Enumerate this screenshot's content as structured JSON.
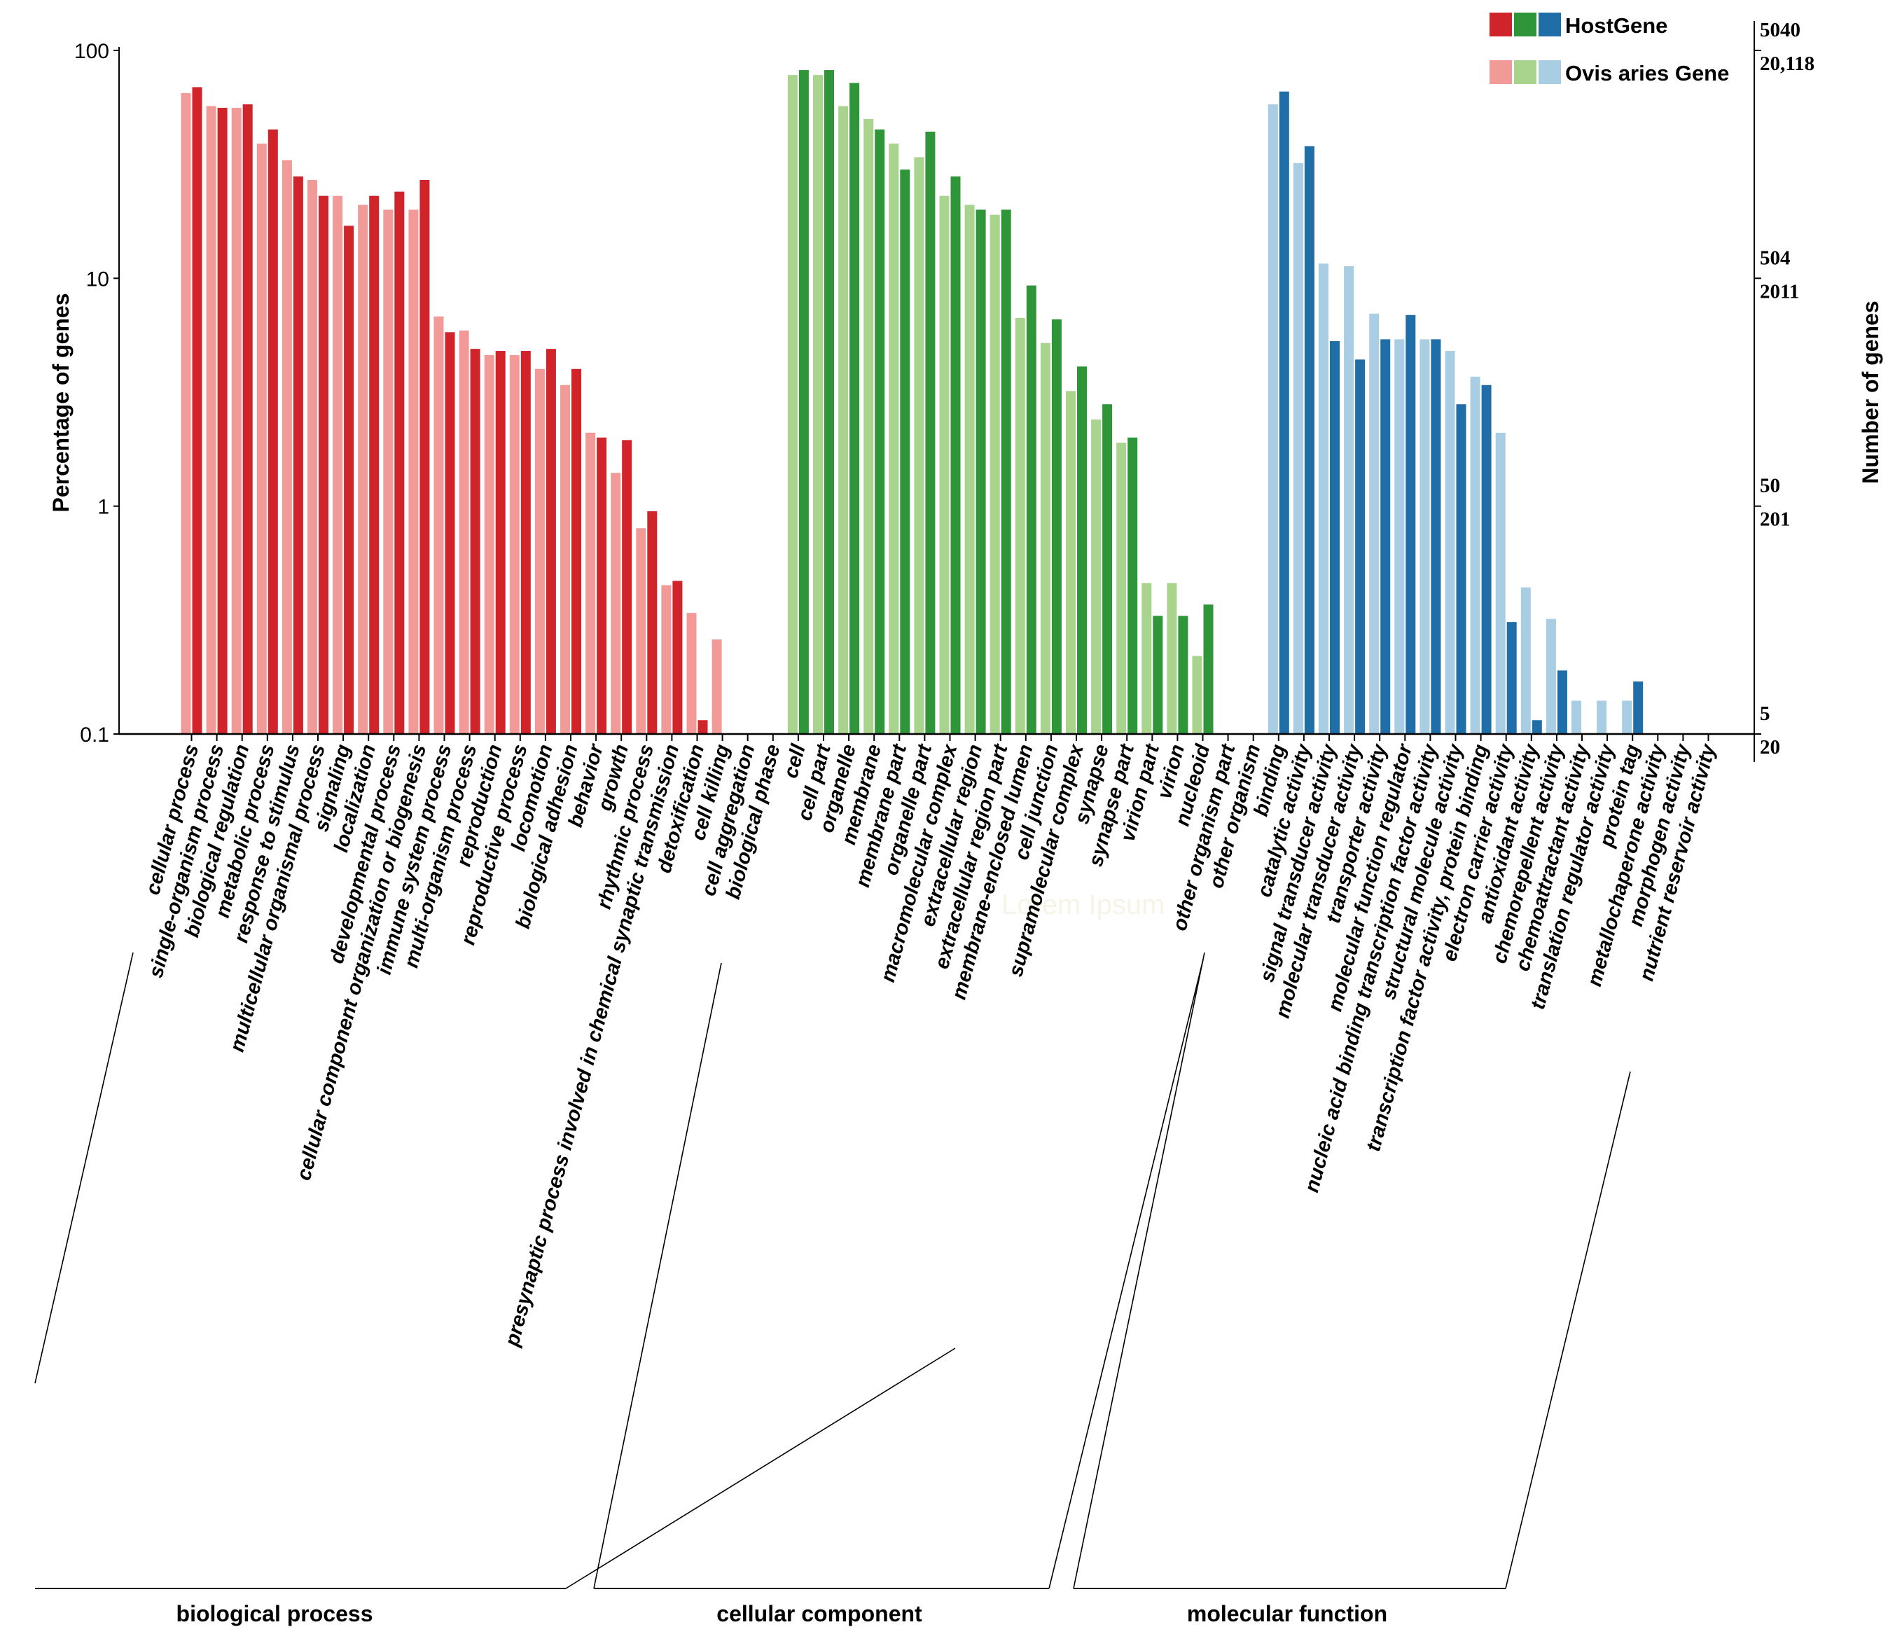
{
  "chart_data": {
    "type": "bar",
    "ylabel": "Percentage of genes",
    "y2label": "Number of genes",
    "yscale": "log",
    "ylim": [
      0.1,
      100
    ],
    "yticks": [
      {
        "value": 100,
        "label": "100"
      },
      {
        "value": 10,
        "label": "10"
      },
      {
        "value": 1,
        "label": "1"
      },
      {
        "value": 0.1,
        "label": "0.1"
      }
    ],
    "y2ticks": [
      {
        "host": "5040",
        "ovis": "20,118"
      },
      {
        "host": "504",
        "ovis": "2011"
      },
      {
        "host": "50",
        "ovis": "201"
      },
      {
        "host": "5",
        "ovis": "20"
      }
    ],
    "legend": {
      "position": "top-right",
      "entries": [
        {
          "label": "HostGene",
          "colors": [
            "#d0232a",
            "#2e9638",
            "#1f6ea8"
          ]
        },
        {
          "label": "Ovis aries Gene",
          "colors": [
            "#f29a98",
            "#a8d48d",
            "#a9cde2"
          ]
        }
      ]
    },
    "watermark": "Lorem Ipsum",
    "groups": [
      {
        "name": "biological process",
        "host_color": "#d0232a",
        "ovis_color": "#f29a98",
        "categories": [
          "cellular process",
          "single-organism process",
          "biological regulation",
          "metabolic process",
          "response to stimulus",
          "multicellular organismal process",
          "signaling",
          "localization",
          "developmental process",
          "cellular component organization or biogenesis",
          "immune system process",
          "multi-organism process",
          "reproduction",
          "reproductive process",
          "locomotion",
          "biological adhesion",
          "behavior",
          "growth",
          "rhythmic process",
          "presynaptic process involved in chemical synaptic transmission",
          "detoxification",
          "cell killing",
          "cell aggregation",
          "biological phase"
        ],
        "series": [
          {
            "name": "Ovis aries Gene",
            "values": [
              65,
              57,
              56,
              39,
              33,
              27,
              23,
              21,
              20,
              20,
              6.8,
              5.9,
              4.6,
              4.6,
              4.0,
              3.4,
              2.1,
              1.4,
              0.8,
              0.45,
              0.34,
              0.26,
              null,
              null
            ]
          },
          {
            "name": "HostGene",
            "values": [
              69,
              56,
              58,
              45,
              28,
              23,
              17,
              23,
              24,
              27,
              5.8,
              4.9,
              4.8,
              4.8,
              4.9,
              4.0,
              2.0,
              1.95,
              0.95,
              0.47,
              0.115,
              null,
              null,
              null
            ]
          }
        ]
      },
      {
        "name": "cellular component",
        "host_color": "#2e9638",
        "ovis_color": "#a8d48d",
        "categories": [
          "cell",
          "cell part",
          "organelle",
          "membrane",
          "membrane part",
          "organelle part",
          "macromolecular complex",
          "extracellular region",
          "extracellular region part",
          "membrane-enclosed lumen",
          "cell junction",
          "supramolecular complex",
          "synapse",
          "synapse part",
          "virion part",
          "virion",
          "nucleoid",
          "other organism part",
          "other organism"
        ],
        "series": [
          {
            "name": "Ovis aries Gene",
            "values": [
              78,
              78,
              57,
              50,
              39,
              34,
              23,
              21,
              19,
              6.7,
              5.2,
              3.2,
              2.4,
              1.9,
              0.46,
              0.46,
              0.22,
              null,
              null
            ]
          },
          {
            "name": "HostGene",
            "values": [
              82,
              82,
              72,
              45,
              30,
              44,
              28,
              20,
              20,
              9.3,
              6.6,
              4.1,
              2.8,
              2.0,
              0.33,
              0.33,
              0.37,
              null,
              null
            ]
          }
        ]
      },
      {
        "name": "molecular function",
        "host_color": "#1f6ea8",
        "ovis_color": "#a9cde2",
        "categories": [
          "binding",
          "catalytic activity",
          "signal transducer activity",
          "molecular transducer activity",
          "transporter activity",
          "molecular function regulator",
          "nucleic acid binding transcription factor activity",
          "structural molecule activity",
          "transcription factor activity, protein binding",
          "electron carrier activity",
          "antioxidant activity",
          "chemorepellent activity",
          "chemoattractant activity",
          "translation regulator activity",
          "protein tag",
          "metallochaperone activity",
          "morphogen activity",
          "nutrient reservoir activity"
        ],
        "series": [
          {
            "name": "Ovis aries Gene",
            "values": [
              58,
              32,
              11.6,
              11.3,
              7.0,
              5.4,
              5.4,
              4.8,
              3.7,
              2.1,
              0.44,
              0.32,
              0.14,
              0.14,
              0.14,
              null,
              null,
              null
            ]
          },
          {
            "name": "HostGene",
            "values": [
              66,
              38,
              5.3,
              4.4,
              5.4,
              6.9,
              5.4,
              2.8,
              3.4,
              0.31,
              0.115,
              0.19,
              null,
              null,
              0.17,
              null,
              null,
              null
            ]
          }
        ]
      }
    ]
  }
}
